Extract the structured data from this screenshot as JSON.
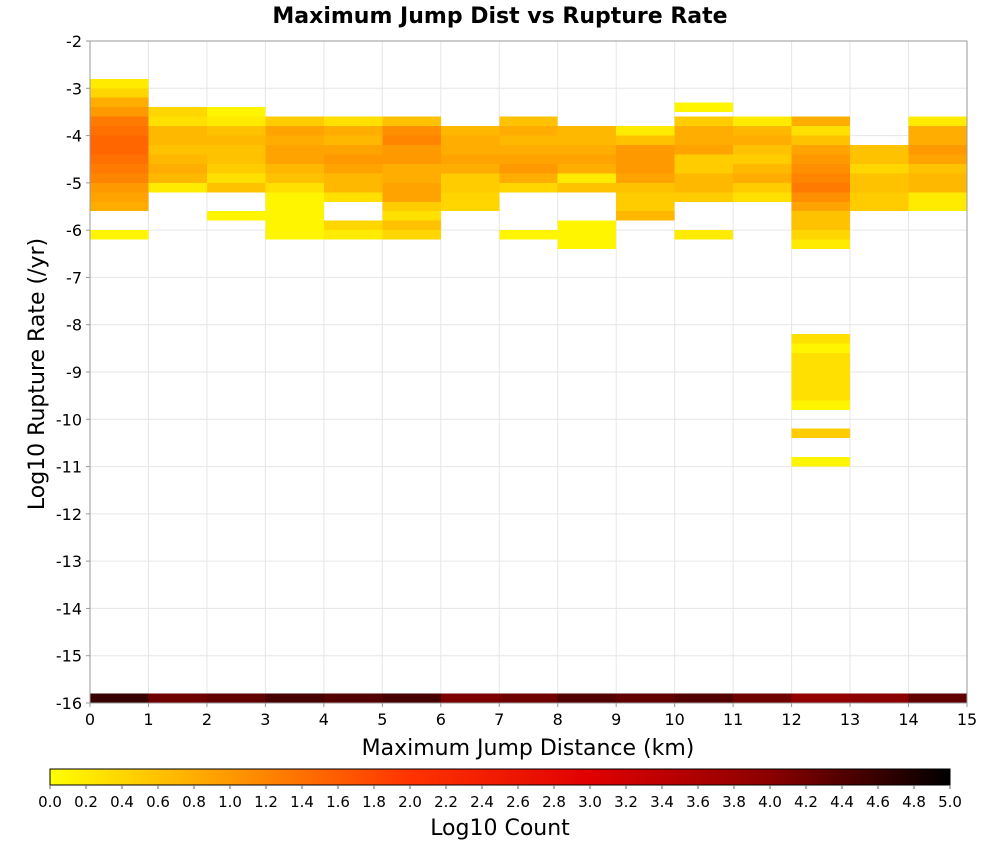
{
  "chart_data": {
    "type": "heatmap",
    "title": "Maximum Jump Dist vs Rupture Rate",
    "xlabel": "Maximum Jump Distance (km)",
    "ylabel": "Log10 Rupture Rate (/yr)",
    "xlim": [
      0,
      15
    ],
    "ylim": [
      -16,
      -2
    ],
    "x_ticks": [
      "0",
      "1",
      "2",
      "3",
      "4",
      "5",
      "6",
      "7",
      "8",
      "9",
      "10",
      "11",
      "12",
      "13",
      "14",
      "15"
    ],
    "y_ticks": [
      "-2",
      "-3",
      "-4",
      "-5",
      "-6",
      "-7",
      "-8",
      "-9",
      "-10",
      "-11",
      "-12",
      "-13",
      "-14",
      "-15",
      "-16"
    ],
    "grid": true,
    "cell_height": 0.2,
    "colorbar": {
      "label": "Log10 Count",
      "min": 0,
      "max": 5,
      "colors": [
        "#ffff00",
        "#ff9900",
        "#ff3300",
        "#e00000",
        "#8b0000",
        "#000000"
      ],
      "ticks": [
        "0.0",
        "0.2",
        "0.4",
        "0.6",
        "0.8",
        "1.0",
        "1.2",
        "1.4",
        "1.6",
        "1.8",
        "2.0",
        "2.2",
        "2.4",
        "2.6",
        "2.8",
        "3.0",
        "3.2",
        "3.4",
        "3.6",
        "3.8",
        "4.0",
        "4.2",
        "4.4",
        "4.6",
        "4.8",
        "5.0"
      ]
    },
    "columns": [
      {
        "x": 0,
        "cells": [
          [
            -2.9,
            0.2
          ],
          [
            -3.1,
            0.4
          ],
          [
            -3.3,
            0.8
          ],
          [
            -3.5,
            1.0
          ],
          [
            -3.7,
            1.3
          ],
          [
            -3.9,
            1.4
          ],
          [
            -4.1,
            1.5
          ],
          [
            -4.3,
            1.5
          ],
          [
            -4.5,
            1.4
          ],
          [
            -4.7,
            1.3
          ],
          [
            -4.9,
            1.2
          ],
          [
            -5.1,
            1.0
          ],
          [
            -5.3,
            0.9
          ],
          [
            -5.5,
            0.8
          ],
          [
            -6.1,
            0.1
          ],
          [
            -15.9,
            4.6
          ]
        ]
      },
      {
        "x": 1,
        "cells": [
          [
            -3.5,
            0.4
          ],
          [
            -3.7,
            0.3
          ],
          [
            -3.9,
            0.7
          ],
          [
            -4.1,
            0.7
          ],
          [
            -4.3,
            0.6
          ],
          [
            -4.5,
            0.7
          ],
          [
            -4.7,
            0.8
          ],
          [
            -4.9,
            0.7
          ],
          [
            -5.1,
            0.2
          ],
          [
            -15.9,
            4.2
          ]
        ]
      },
      {
        "x": 2,
        "cells": [
          [
            -3.5,
            0.1
          ],
          [
            -3.7,
            0.2
          ],
          [
            -3.9,
            0.6
          ],
          [
            -4.1,
            0.7
          ],
          [
            -4.3,
            0.6
          ],
          [
            -4.5,
            0.6
          ],
          [
            -4.7,
            0.5
          ],
          [
            -4.9,
            0.3
          ],
          [
            -5.1,
            0.6
          ],
          [
            -5.7,
            0.1
          ],
          [
            -15.9,
            4.3
          ]
        ]
      },
      {
        "x": 3,
        "cells": [
          [
            -3.7,
            0.5
          ],
          [
            -3.9,
            0.9
          ],
          [
            -4.1,
            0.8
          ],
          [
            -4.3,
            0.9
          ],
          [
            -4.5,
            0.9
          ],
          [
            -4.7,
            0.7
          ],
          [
            -4.9,
            0.6
          ],
          [
            -5.1,
            0.3
          ],
          [
            -5.3,
            0.1
          ],
          [
            -5.5,
            0.1
          ],
          [
            -5.7,
            0.1
          ],
          [
            -5.9,
            0.1
          ],
          [
            -6.1,
            0.1
          ],
          [
            -15.9,
            4.5
          ]
        ]
      },
      {
        "x": 4,
        "cells": [
          [
            -3.7,
            0.3
          ],
          [
            -3.9,
            0.8
          ],
          [
            -4.1,
            0.7
          ],
          [
            -4.3,
            0.9
          ],
          [
            -4.5,
            1.0
          ],
          [
            -4.7,
            0.9
          ],
          [
            -4.9,
            0.7
          ],
          [
            -5.1,
            0.7
          ],
          [
            -5.3,
            0.3
          ],
          [
            -5.9,
            0.4
          ],
          [
            -6.1,
            0.2
          ],
          [
            -15.9,
            4.4
          ]
        ]
      },
      {
        "x": 5,
        "cells": [
          [
            -3.7,
            0.6
          ],
          [
            -3.9,
            1.1
          ],
          [
            -4.1,
            1.2
          ],
          [
            -4.3,
            1.0
          ],
          [
            -4.5,
            1.0
          ],
          [
            -4.7,
            0.8
          ],
          [
            -4.9,
            0.8
          ],
          [
            -5.1,
            0.9
          ],
          [
            -5.3,
            0.9
          ],
          [
            -5.5,
            0.5
          ],
          [
            -5.7,
            0.3
          ],
          [
            -5.9,
            0.6
          ],
          [
            -6.1,
            0.4
          ],
          [
            -15.9,
            4.5
          ]
        ]
      },
      {
        "x": 6,
        "cells": [
          [
            -3.9,
            0.7
          ],
          [
            -4.1,
            0.8
          ],
          [
            -4.3,
            0.8
          ],
          [
            -4.5,
            0.9
          ],
          [
            -4.7,
            0.8
          ],
          [
            -4.9,
            0.5
          ],
          [
            -5.1,
            0.5
          ],
          [
            -5.3,
            0.4
          ],
          [
            -5.5,
            0.4
          ],
          [
            -15.9,
            4.1
          ]
        ]
      },
      {
        "x": 7,
        "cells": [
          [
            -3.7,
            0.6
          ],
          [
            -3.9,
            0.8
          ],
          [
            -4.1,
            0.7
          ],
          [
            -4.3,
            0.8
          ],
          [
            -4.5,
            0.9
          ],
          [
            -4.7,
            1.0
          ],
          [
            -4.9,
            0.8
          ],
          [
            -5.1,
            0.4
          ],
          [
            -6.1,
            0.1
          ],
          [
            -15.9,
            4.2
          ]
        ]
      },
      {
        "x": 8,
        "cells": [
          [
            -3.9,
            0.7
          ],
          [
            -4.1,
            0.7
          ],
          [
            -4.3,
            0.8
          ],
          [
            -4.5,
            0.9
          ],
          [
            -4.7,
            0.8
          ],
          [
            -4.9,
            0.2
          ],
          [
            -5.1,
            0.6
          ],
          [
            -5.9,
            0.1
          ],
          [
            -6.1,
            0.1
          ],
          [
            -6.3,
            0.1
          ],
          [
            -15.9,
            4.4
          ]
        ]
      },
      {
        "x": 9,
        "cells": [
          [
            -3.9,
            0.2
          ],
          [
            -4.1,
            0.6
          ],
          [
            -4.3,
            1.0
          ],
          [
            -4.5,
            1.0
          ],
          [
            -4.7,
            1.0
          ],
          [
            -4.9,
            0.9
          ],
          [
            -5.1,
            0.6
          ],
          [
            -5.3,
            0.5
          ],
          [
            -5.5,
            0.5
          ],
          [
            -5.7,
            0.7
          ],
          [
            -15.9,
            4.3
          ]
        ]
      },
      {
        "x": 10,
        "cells": [
          [
            -3.4,
            0.1
          ],
          [
            -3.7,
            0.5
          ],
          [
            -3.9,
            0.8
          ],
          [
            -4.1,
            0.8
          ],
          [
            -4.3,
            0.9
          ],
          [
            -4.5,
            0.5
          ],
          [
            -4.7,
            0.5
          ],
          [
            -4.9,
            0.7
          ],
          [
            -5.1,
            0.7
          ],
          [
            -5.3,
            0.5
          ],
          [
            -6.1,
            0.2
          ],
          [
            -15.9,
            4.4
          ]
        ]
      },
      {
        "x": 11,
        "cells": [
          [
            -3.7,
            0.2
          ],
          [
            -3.9,
            0.7
          ],
          [
            -4.1,
            0.8
          ],
          [
            -4.3,
            0.6
          ],
          [
            -4.5,
            0.5
          ],
          [
            -4.7,
            0.7
          ],
          [
            -4.9,
            0.8
          ],
          [
            -5.1,
            0.5
          ],
          [
            -5.3,
            0.3
          ],
          [
            -15.9,
            4.2
          ]
        ]
      },
      {
        "x": 12,
        "cells": [
          [
            -3.7,
            0.8
          ],
          [
            -3.9,
            0.3
          ],
          [
            -4.1,
            0.6
          ],
          [
            -4.3,
            0.9
          ],
          [
            -4.5,
            1.0
          ],
          [
            -4.7,
            1.1
          ],
          [
            -4.9,
            1.2
          ],
          [
            -5.1,
            1.3
          ],
          [
            -5.3,
            1.1
          ],
          [
            -5.5,
            0.9
          ],
          [
            -5.7,
            0.6
          ],
          [
            -5.9,
            0.6
          ],
          [
            -6.1,
            0.4
          ],
          [
            -6.3,
            0.2
          ],
          [
            -8.3,
            0.3
          ],
          [
            -8.5,
            0.1
          ],
          [
            -8.7,
            0.3
          ],
          [
            -8.9,
            0.3
          ],
          [
            -9.1,
            0.3
          ],
          [
            -9.3,
            0.3
          ],
          [
            -9.5,
            0.3
          ],
          [
            -9.7,
            0.1
          ],
          [
            -10.3,
            0.5
          ],
          [
            -10.9,
            0.1
          ],
          [
            -15.9,
            3.9
          ]
        ]
      },
      {
        "x": 13,
        "cells": [
          [
            -4.3,
            0.6
          ],
          [
            -4.5,
            0.6
          ],
          [
            -4.7,
            0.4
          ],
          [
            -4.9,
            0.6
          ],
          [
            -5.1,
            0.6
          ],
          [
            -5.3,
            0.5
          ],
          [
            -5.5,
            0.5
          ],
          [
            -15.9,
            4.0
          ]
        ]
      },
      {
        "x": 14,
        "cells": [
          [
            -3.7,
            0.2
          ],
          [
            -3.9,
            0.8
          ],
          [
            -4.1,
            0.8
          ],
          [
            -4.3,
            1.0
          ],
          [
            -4.5,
            0.9
          ],
          [
            -4.7,
            0.6
          ],
          [
            -4.9,
            0.7
          ],
          [
            -5.1,
            0.7
          ],
          [
            -5.3,
            0.2
          ],
          [
            -5.5,
            0.2
          ],
          [
            -15.9,
            4.3
          ]
        ]
      }
    ]
  }
}
